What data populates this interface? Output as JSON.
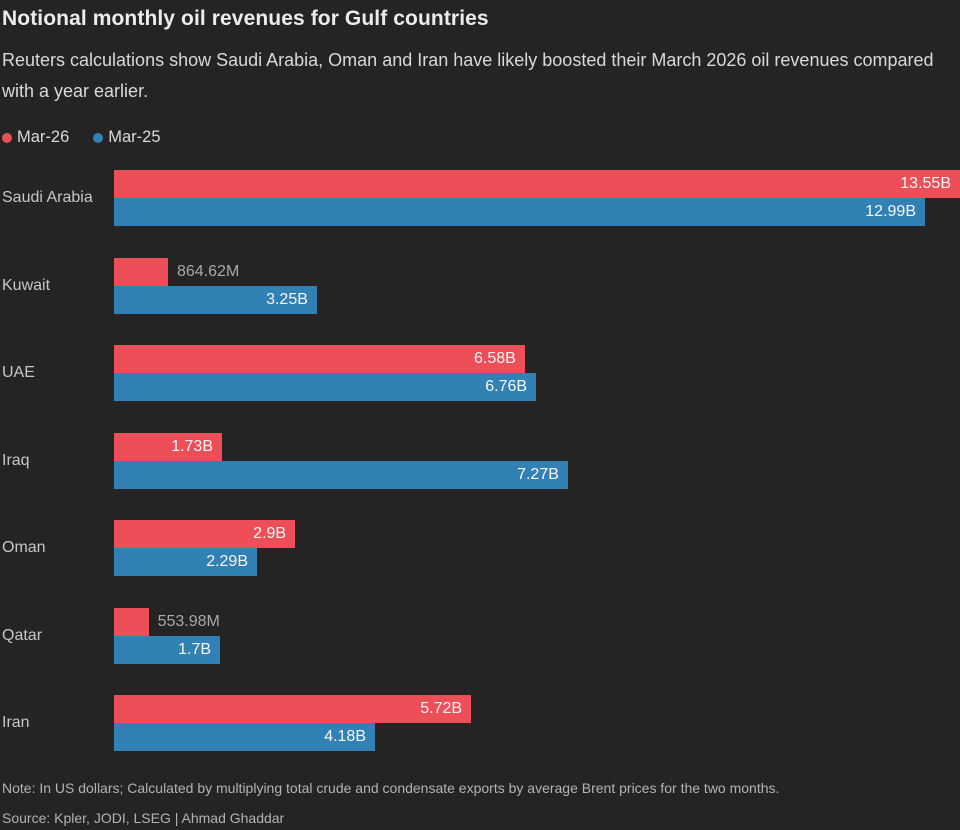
{
  "header": {
    "title": "Notional monthly oil revenues for Gulf countries",
    "subtitle": "Reuters calculations show Saudi Arabia, Oman and Iran have likely boosted their March 2026 oil revenues compared with a year earlier."
  },
  "footer": {
    "note": "Note: In US dollars; Calculated by multiplying total crude and condensate exports by average Brent prices for the two months.",
    "source": "Source: Kpler, JODI, LSEG | Ahmad Ghaddar"
  },
  "colors": {
    "background": "#242424",
    "mar26": "#ec4f58",
    "mar25": "#3181b5",
    "inside_label": "#f7f7f7",
    "outside_label": "#a9a9a9"
  },
  "chart_data": {
    "type": "bar",
    "orientation": "horizontal",
    "title": "Notional monthly oil revenues for Gulf countries",
    "subtitle": "Reuters calculations show Saudi Arabia, Oman and Iran have likely boosted their March 2026 oil revenues compared with a year earlier.",
    "unit": "US dollars",
    "xlim": [
      0,
      13.55
    ],
    "grid": false,
    "legend_position": "top-left",
    "categories": [
      "Saudi Arabia",
      "Kuwait",
      "UAE",
      "Iraq",
      "Oman",
      "Qatar",
      "Iran"
    ],
    "series": [
      {
        "name": "Mar-26",
        "color": "#ec4f58",
        "values_billion": [
          13.55,
          0.86462,
          6.58,
          1.73,
          2.9,
          0.55398,
          5.72
        ],
        "labels": [
          "13.55B",
          "864.62M",
          "6.58B",
          "1.73B",
          "2.9B",
          "553.98M",
          "5.72B"
        ]
      },
      {
        "name": "Mar-25",
        "color": "#3181b5",
        "values_billion": [
          12.99,
          3.25,
          6.76,
          7.27,
          2.29,
          1.7,
          4.18
        ],
        "labels": [
          "12.99B",
          "3.25B",
          "6.76B",
          "7.27B",
          "2.29B",
          "1.7B",
          "4.18B"
        ]
      }
    ],
    "note": "Note: In US dollars; Calculated by multiplying total crude and condensate exports by average Brent prices for the two months.",
    "source": "Source: Kpler, JODI, LSEG | Ahmad Ghaddar"
  }
}
